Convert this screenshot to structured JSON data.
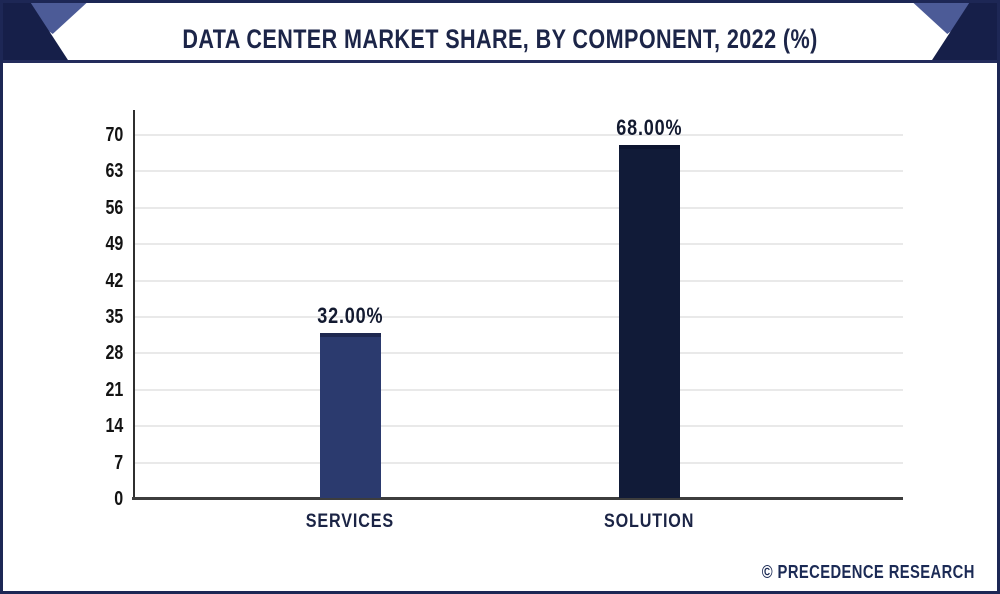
{
  "header": {
    "title": "DATA CENTER MARKET SHARE, BY COMPONENT, 2022 (%)"
  },
  "footer": {
    "watermark": "© PRECEDENCE RESEARCH"
  },
  "colors": {
    "frame_border": "#1d2755",
    "banner_dark_navy": "#161f49",
    "banner_accent_blue": "#4c5b97",
    "banner_divider": "#232c5c",
    "title_text": "#1c2548",
    "bar_services": "#2b3a6e",
    "bar_services_cap": "#1e2850",
    "bar_solution": "#111b38",
    "bar_solution_cap": "#0d1530",
    "gridline": "#e9e9e9",
    "axis_line": "#3d3d3d",
    "ytick_text": "#131313",
    "category_text": "#1b2445",
    "value_text": "#131a30",
    "watermark_text": "#1b2a55"
  },
  "chart_data": {
    "type": "bar",
    "title": "DATA CENTER MARKET SHARE, BY COMPONENT, 2022 (%)",
    "categories": [
      "SERVICES",
      "SOLUTION"
    ],
    "values": [
      32,
      68
    ],
    "value_labels": [
      "32.00%",
      "68.00%"
    ],
    "bar_colors": [
      "#2b3a6e",
      "#111b38"
    ],
    "bar_cap_colors": [
      "#1e2850",
      "#0d1530"
    ],
    "xlabel": "",
    "ylabel": "",
    "ylim": [
      0,
      70
    ],
    "yticks": [
      0,
      7,
      14,
      21,
      28,
      35,
      42,
      49,
      56,
      63,
      70
    ],
    "grid": "horizontal",
    "legend": "none",
    "unit": "%"
  }
}
